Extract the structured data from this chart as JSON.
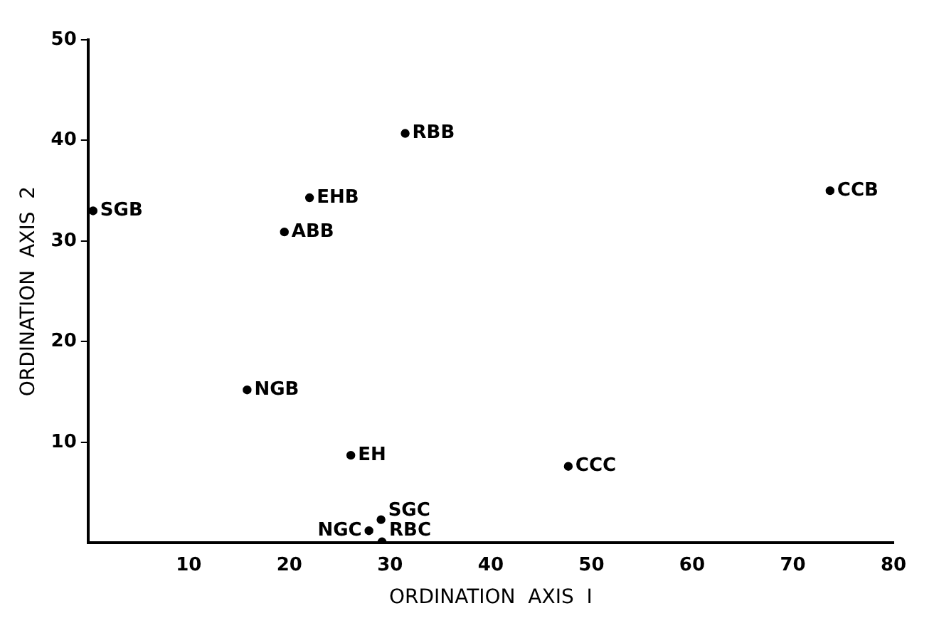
{
  "chart_data": {
    "type": "scatter",
    "xlabel": "ORDINATION  AXIS  I",
    "ylabel": "ORDINATION  AXIS  2",
    "x": [
      0.5,
      22.0,
      19.5,
      15.8,
      26.1,
      27.9,
      29.1,
      29.2,
      31.5,
      73.7,
      47.7
    ],
    "values": [
      33.0,
      34.3,
      30.9,
      15.2,
      8.7,
      1.2,
      2.3,
      0.1,
      40.7,
      35.0,
      7.6
    ],
    "color": "#000000",
    "marker": "circle",
    "xlim": [
      0,
      80
    ],
    "xticks": [
      10,
      20,
      30,
      40,
      50,
      60,
      70,
      80
    ],
    "ylim": [
      0,
      50
    ],
    "yticks": [
      10,
      20,
      30,
      40,
      50
    ],
    "annotations": [
      {
        "text": "SGB",
        "x": 0.5,
        "y": 33.0
      },
      {
        "text": "EHB",
        "x": 22.0,
        "y": 34.3
      },
      {
        "text": "ABB",
        "x": 19.5,
        "y": 30.9
      },
      {
        "text": "NGB",
        "x": 15.8,
        "y": 15.2
      },
      {
        "text": "EH",
        "x": 26.1,
        "y": 8.7
      },
      {
        "text": "NGC",
        "x": 27.9,
        "y": 1.2
      },
      {
        "text": "SGC",
        "x": 29.1,
        "y": 2.3
      },
      {
        "text": "RBC",
        "x": 29.2,
        "y": 0.1
      },
      {
        "text": "RBB",
        "x": 31.5,
        "y": 40.7
      },
      {
        "text": "CCB",
        "x": 73.7,
        "y": 35.0
      },
      {
        "text": "CCC",
        "x": 47.7,
        "y": 7.6
      }
    ]
  }
}
